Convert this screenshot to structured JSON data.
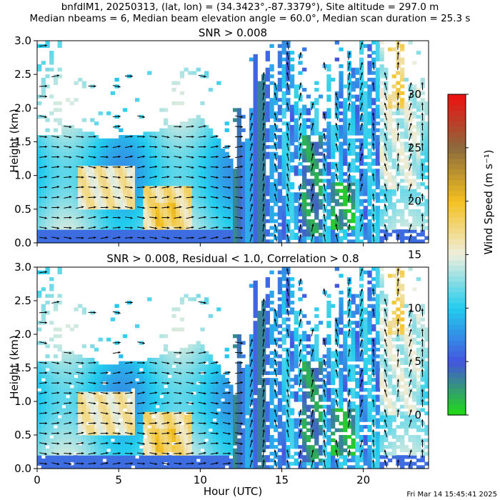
{
  "header": {
    "line1": "bnfdlM1, 20250313, (lat, lon) = (34.3423°,-87.3379°), Site altitude = 297.0 m",
    "line2": "Median nbeams = 6, Median beam elevation angle = 60.0°, Median scan duration = 25.3 s"
  },
  "footer": {
    "timestamp": "Fri Mar 14 15:45:41 2025"
  },
  "colorbar": {
    "label": "Wind Speed (m s⁻¹)",
    "ticks": [
      0,
      5,
      10,
      15,
      20,
      25,
      30
    ],
    "range": [
      0,
      30
    ],
    "colors": [
      "#22dd11",
      "#4455dd",
      "#22ccee",
      "#eeeedd",
      "#f4c020",
      "#8b6a3c",
      "#ee1111"
    ]
  },
  "chart_data": [
    {
      "type": "heatmap",
      "title": "SNR > 0.008",
      "xlabel": "",
      "ylabel": "Height (km)",
      "xlim": [
        0,
        24
      ],
      "ylim": [
        0,
        3.0
      ],
      "xticks": [
        0,
        5,
        10,
        15,
        20
      ],
      "yticks": [
        0.0,
        0.5,
        1.0,
        1.5,
        2.0,
        2.5,
        3.0
      ],
      "value": "horizontal wind speed (m/s) with wind-direction barbs",
      "approx_top_of_data_km": [
        {
          "x": 0,
          "y": 1.8
        },
        {
          "x": 2,
          "y": 1.75
        },
        {
          "x": 4,
          "y": 1.55
        },
        {
          "x": 6,
          "y": 1.6
        },
        {
          "x": 8,
          "y": 1.7
        },
        {
          "x": 10,
          "y": 1.9
        },
        {
          "x": 12,
          "y": 1.2
        },
        {
          "x": 13,
          "y": 2.2
        },
        {
          "x": 15,
          "y": 3.0
        },
        {
          "x": 17,
          "y": 1.9
        },
        {
          "x": 19,
          "y": 2.5
        },
        {
          "x": 21,
          "y": 3.0
        },
        {
          "x": 23,
          "y": 2.2
        },
        {
          "x": 24,
          "y": 2.0
        }
      ],
      "speed_patches": [
        {
          "x": [
            2.5,
            6
          ],
          "y": [
            0.5,
            1.15
          ],
          "speed": 16
        },
        {
          "x": [
            6.5,
            9.5
          ],
          "y": [
            0.2,
            0.85
          ],
          "speed": 17
        },
        {
          "x": [
            7.2,
            8.5
          ],
          "y": [
            0.25,
            0.6
          ],
          "speed": 19
        },
        {
          "x": [
            16.2,
            17.5
          ],
          "y": [
            0.1,
            1.6
          ],
          "speed": 3
        },
        {
          "x": [
            18,
            19.5
          ],
          "y": [
            0.2,
            0.9
          ],
          "speed": 2
        },
        {
          "x": [
            21,
            23.5
          ],
          "y": [
            0.8,
            3.0
          ],
          "speed": 14
        },
        {
          "x": [
            21.5,
            22.5
          ],
          "y": [
            2.0,
            3.0
          ],
          "speed": 18
        }
      ]
    },
    {
      "type": "heatmap",
      "title": "SNR > 0.008, Residual < 1.0, Correlation > 0.8",
      "xlabel": "Hour (UTC)",
      "ylabel": "Height (km)",
      "xlim": [
        0,
        24
      ],
      "ylim": [
        0,
        3.0
      ],
      "xticks": [
        0,
        5,
        10,
        15,
        20
      ],
      "yticks": [
        0.0,
        0.5,
        1.0,
        1.5,
        2.0,
        2.5,
        3.0
      ],
      "value": "horizontal wind speed (m/s) with wind-direction barbs"
    }
  ]
}
